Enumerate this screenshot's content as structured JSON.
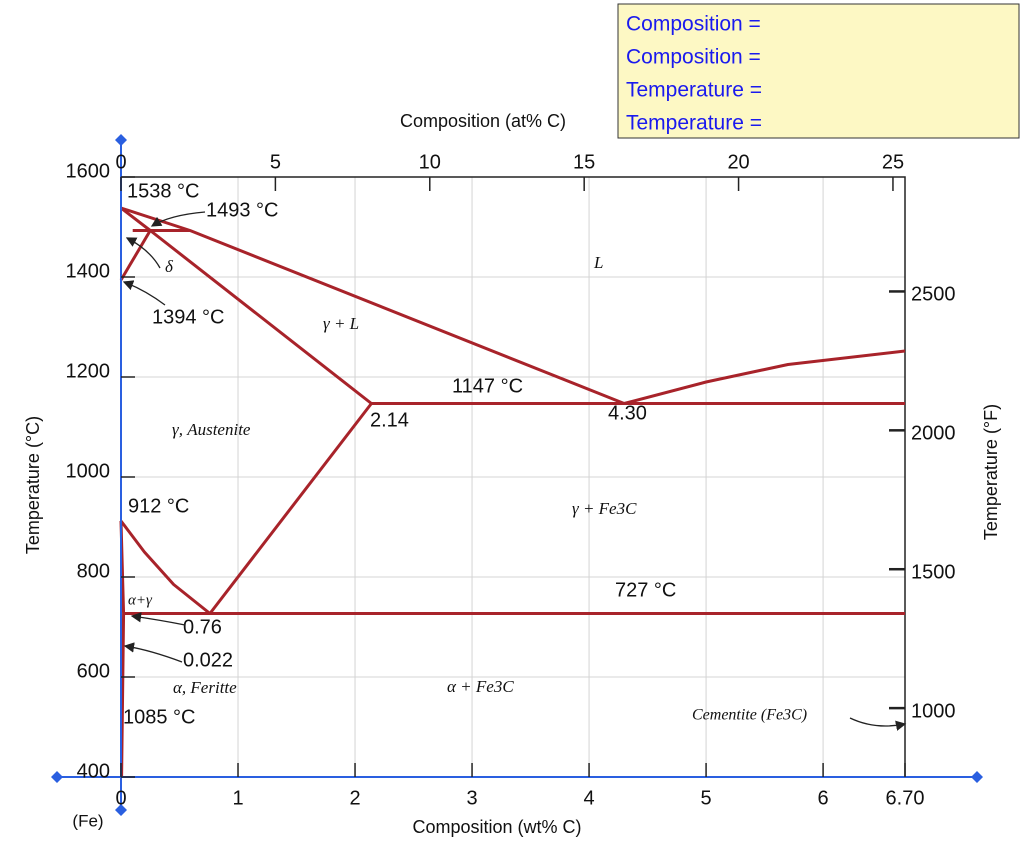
{
  "chart_data": {
    "type": "line",
    "x_label": "Composition (wt% C)",
    "x2_label": "Composition (at% C)",
    "y_label": "Temperature (°C)",
    "y2_label": "Temperature (°F)",
    "origin_label": "(Fe)",
    "xlim": [
      0,
      6.7
    ],
    "xticks": [
      0,
      1,
      2,
      3,
      4,
      5,
      6,
      {
        "value": 6.7,
        "label": "6.70"
      }
    ],
    "x2lim": [
      0,
      25.39
    ],
    "x2ticks": [
      0,
      5,
      10,
      15,
      20,
      25
    ],
    "ylim": [
      400,
      1600
    ],
    "yticks": [
      400,
      600,
      800,
      1000,
      1200,
      1400,
      1600
    ],
    "y2lim": [
      752,
      2912
    ],
    "y2ticks": [
      1000,
      1500,
      2000,
      2500
    ],
    "grid": true,
    "color": "#a8232a",
    "series": [
      {
        "x": [
          0,
          0.59,
          4.3,
          5.0,
          5.7,
          6.7
        ],
        "values": [
          1538,
          1493,
          1147,
          1190,
          1225,
          1252
        ]
      },
      {
        "x": [
          0,
          0.25
        ],
        "values": [
          1538,
          1493
        ]
      },
      {
        "x": [
          0.1,
          0.59
        ],
        "values": [
          1493,
          1493
        ]
      },
      {
        "x": [
          0,
          0.25
        ],
        "values": [
          1394,
          1493
        ]
      },
      {
        "x": [
          0.25,
          2.14
        ],
        "values": [
          1493,
          1147
        ]
      },
      {
        "x": [
          2.14,
          6.7
        ],
        "values": [
          1147,
          1147
        ]
      },
      {
        "x": [
          2.14,
          0.76
        ],
        "values": [
          1147,
          727
        ]
      },
      {
        "x": [
          0,
          0.2,
          0.45,
          0.76
        ],
        "values": [
          912,
          850,
          785,
          727
        ]
      },
      {
        "x": [
          0.022,
          6.7
        ],
        "values": [
          727,
          727
        ]
      },
      {
        "x": [
          0,
          0.022,
          0.005
        ],
        "values": [
          912,
          727,
          400
        ]
      }
    ],
    "annotations": [
      "1538 °C",
      "1493 °C",
      "δ",
      "1394 °C",
      "L",
      "γ + L",
      "1147 °C",
      "2.14",
      "4.30",
      "γ, Austenite",
      "912 °C",
      "γ + Fe3C",
      "727 °C",
      "α+γ",
      "0.76",
      "0.022",
      "α, Feritte",
      "α + Fe3C",
      "1085 °C",
      "Cementite (Fe3C)"
    ]
  },
  "info_panel": [
    "Composition =",
    "Composition =",
    "Temperature =",
    "Temperature ="
  ]
}
